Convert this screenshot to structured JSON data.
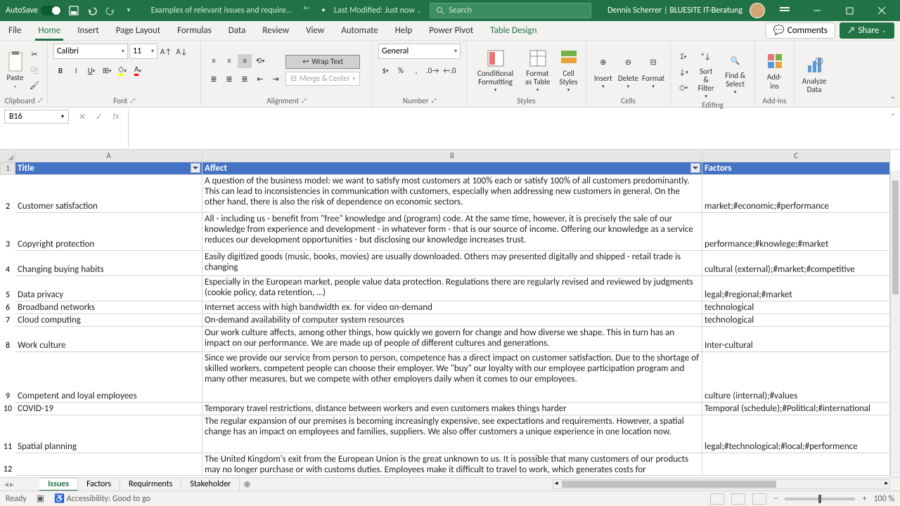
{
  "titlebar": {
    "autosave_label": "AutoSave",
    "filename": "Examples of relevant issues and require…",
    "last_modified": "Last Modified: Just now",
    "search_placeholder": "Search",
    "user": "Dennis Scherrer | BLUESITE IT-Beratung"
  },
  "tabs": {
    "file": "File",
    "home": "Home",
    "insert": "Insert",
    "page_layout": "Page Layout",
    "formulas": "Formulas",
    "data": "Data",
    "review": "Review",
    "view": "View",
    "automate": "Automate",
    "help": "Help",
    "power_pivot": "Power Pivot",
    "table_design": "Table Design",
    "comments": "Comments",
    "share": "Share"
  },
  "ribbon": {
    "clipboard": {
      "paste": "Paste",
      "group": "Clipboard"
    },
    "font": {
      "name": "Calibri",
      "size": "11",
      "group": "Font"
    },
    "alignment": {
      "wrap": "Wrap Text",
      "merge": "Merge & Center",
      "group": "Alignment"
    },
    "number": {
      "format": "General",
      "group": "Number"
    },
    "styles": {
      "cond": "Conditional Formatting",
      "fmt_table": "Format as Table",
      "cell_styles": "Cell Styles",
      "group": "Styles"
    },
    "cells": {
      "insert": "Insert",
      "delete": "Delete",
      "format": "Format",
      "group": "Cells"
    },
    "editing": {
      "sort": "Sort & Filter",
      "find": "Find & Select",
      "group": "Editing"
    },
    "addins": {
      "addins": "Add-ins",
      "group": "Add-ins"
    },
    "analyze": {
      "label": "Analyze Data"
    }
  },
  "formula_bar": {
    "cell_ref": "B16"
  },
  "columns": {
    "A": "A",
    "B": "B",
    "C": "C"
  },
  "col_widths": {
    "A": 266,
    "B": 711,
    "C": 267
  },
  "header": {
    "title": "Title",
    "affect": "Affect",
    "factors": "Factors"
  },
  "rows": [
    {
      "n": 2,
      "h": 54,
      "title": "Customer satisfaction",
      "affect": "A question of the business model: we want to satisfy most customers at 100% each or satisfy 100% of all customers predominantly. This can lead to inconsistencies in communication with customers, especially when addressing new customers in general. On the other hand, there is also the risk of dependence on economic sectors.",
      "factors": "market;#economic;#performance"
    },
    {
      "n": 3,
      "h": 54,
      "title": "Copyright protection",
      "affect": "All - including us - benefit from \"free\" knowledge and (program) code. At the same time, however, it is precisely the sale of our knowledge from experience and development - in whatever form - that is our source of income. Offering our knowledge as a service reduces our development opportunities - but disclosing our knowledge increases trust.",
      "factors": "performance;#knowlege;#market"
    },
    {
      "n": 4,
      "h": 36,
      "title": "Changing buying habits",
      "affect": "Easily digitized goods (music, books, movies) are usually downloaded. Others may presented digitally and shipped - retail trade is changing",
      "factors": "cultural (external);#market;#competitive"
    },
    {
      "n": 5,
      "h": 36,
      "title": "Data privacy",
      "affect": "Especially in the European market, people value data protection. Regulations there are regularly revised and reviewed by judgments (cookie policy, data retention, …)",
      "factors": "legal;#regional;#market"
    },
    {
      "n": 6,
      "h": 18,
      "title": "Broadband networks",
      "affect": "Internet access with high bandwidth ex. for video on-demand",
      "factors": "technological"
    },
    {
      "n": 7,
      "h": 18,
      "title": "Cloud computing",
      "affect": "On-demand availability of computer system resources",
      "factors": "technological"
    },
    {
      "n": 8,
      "h": 36,
      "title": "Work culture",
      "affect": "Our work culture affects, among other things, how quickly we govern for change and how diverse we shape. This in turn has an impact on our performance. We are made up of people of different cultures and generations.",
      "factors": "Inter-cultural"
    },
    {
      "n": 9,
      "h": 72,
      "title": "Competent and loyal employees",
      "affect": "Since we provide our service from person to person, competence has a direct impact on customer satisfaction. Due to the shortage of skilled workers, competent people can choose their employer. We \"buy\" our loyalty with our employee participation program and many other measures, but we compete with other employers daily when it comes to our employees.",
      "factors": "culture (internal);#values"
    },
    {
      "n": 10,
      "h": 18,
      "title": "COVID-19",
      "affect": "Temporary travel restrictions, distance between workers and even customers makes things harder",
      "factors": "Temporal (schedule);#Political;#international"
    },
    {
      "n": 11,
      "h": 54,
      "title": "Spatial planning",
      "affect": "The regular expansion of our premises is becoming increasingly expensive, see expectations and requirements. However, a spatial change has an impact on employees and families, suppliers. We also offer customers a unique experience in one location now.",
      "factors": "legal;#technological;#local;#performence"
    },
    {
      "n": 12,
      "h": 32,
      "title": "",
      "affect": "The United Kingdom's exit from the European Union is the great unknown to us. It is possible that many customers of our products may no longer purchase or with customs duties. Employees make it difficult to travel to work, which generates costs for",
      "factors": ""
    }
  ],
  "sheets": {
    "s1": "Issues",
    "s2": "Factors",
    "s3": "Requirments",
    "s4": "Stakeholder"
  },
  "status": {
    "ready": "Ready",
    "acc": "Accessibility: Good to go",
    "zoom": "100 %"
  },
  "colors": {
    "brand": "#217346",
    "table_header": "#4472c4"
  }
}
